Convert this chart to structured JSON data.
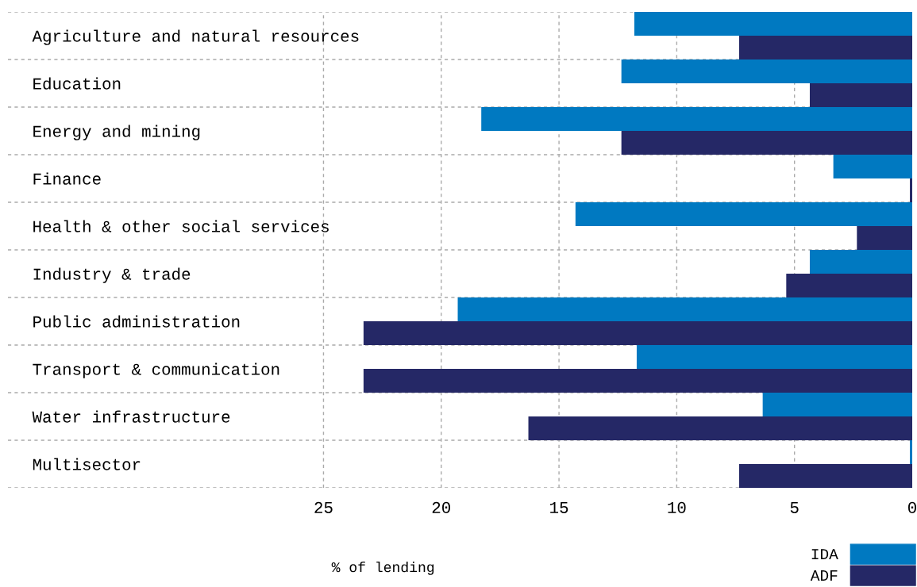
{
  "chart_data": {
    "type": "bar",
    "orientation": "horizontal",
    "categories": [
      "Agriculture and natural resources",
      "Education",
      "Energy and mining",
      "Finance",
      "Health & other social services",
      "Industry & trade",
      "Public administration",
      "Transport & communication",
      "Water infrastructure",
      "Multisector"
    ],
    "series": [
      {
        "name": "IDA",
        "color": "#0079c1",
        "values": [
          11.8,
          12.35,
          18.3,
          3.35,
          14.3,
          4.35,
          19.3,
          11.7,
          6.35,
          0.1
        ]
      },
      {
        "name": "ADF",
        "color": "#252866",
        "values": [
          7.35,
          4.35,
          12.35,
          0.1,
          2.35,
          5.35,
          23.3,
          23.3,
          16.3,
          7.35
        ]
      }
    ],
    "xlabel": "% of lending",
    "xlim": [
      38.4,
      0
    ],
    "xticks": [
      25,
      20,
      15,
      10,
      5,
      0
    ],
    "grid": true,
    "legend": "bottom right"
  }
}
